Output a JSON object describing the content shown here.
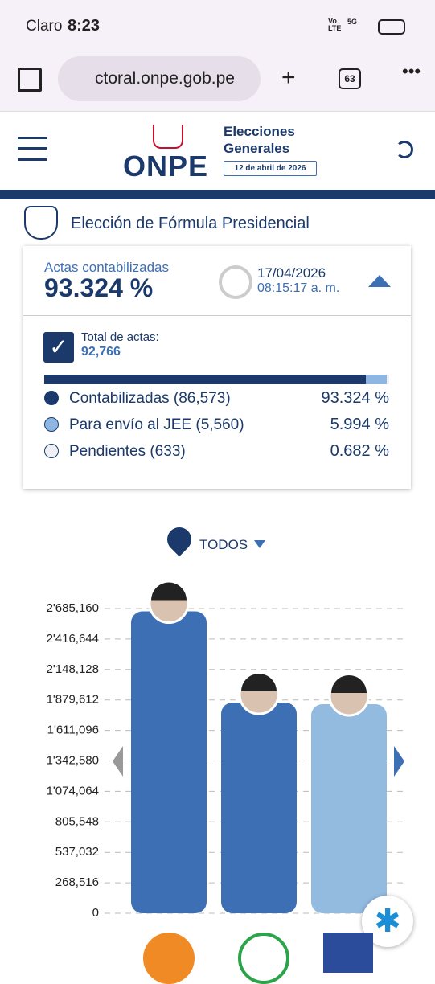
{
  "status_bar": {
    "carrier": "Claro",
    "time": "8:23",
    "volte": "Vo LTE",
    "network": "5G"
  },
  "browser": {
    "url": "ctoral.onpe.gob.pe",
    "tabs": "63"
  },
  "header": {
    "logo": "ONPE",
    "title_1": "Elecciones",
    "title_2": "Generales",
    "date": "12 de abril de 2026"
  },
  "section": {
    "title": "Elección de Fórmula Presidencial"
  },
  "card": {
    "label": "Actas contabilizadas",
    "percent": "93.324 %",
    "date": "17/04/2026",
    "time": "08:15:17 a. m.",
    "total_label": "Total de actas:",
    "total": "92,766",
    "items": [
      {
        "label": "Contabilizadas (86,573)",
        "percent": 93.324,
        "percent_label": "93.324 %",
        "color": "#1b3a6b"
      },
      {
        "label": "Para envío al JEE (5,560)",
        "percent": 5.994,
        "percent_label": "5.994 %",
        "color": "#8db7e2"
      },
      {
        "label": "Pendientes (633)",
        "percent": 0.682,
        "percent_label": "0.682 %",
        "color": "#eef0f3"
      }
    ]
  },
  "filter": {
    "label": "TODOS"
  },
  "chart_data": {
    "type": "bar",
    "categories": [
      null,
      null,
      null
    ],
    "values": [
      2660000,
      1856000,
      1842000
    ],
    "colors": [
      "#3d6fb4",
      "#3d6fb4",
      "#93bbe0"
    ],
    "ylim": [
      0,
      2685160
    ],
    "yticks": [
      0,
      {
        "value": 268516,
        "label": "268,516"
      },
      {
        "value": 537032,
        "label": "537,032"
      },
      {
        "value": 805548,
        "label": "805,548"
      },
      {
        "value": 1074064,
        "label": "1'074,064"
      },
      {
        "value": 1342580,
        "label": "1'342,580"
      },
      {
        "value": 1611096,
        "label": "1'611,096"
      },
      {
        "value": 1879612,
        "label": "1'879,612"
      },
      {
        "value": 2148128,
        "label": "2'148,128"
      },
      {
        "value": 2416644,
        "label": "2'416,644"
      },
      {
        "value": 2685160,
        "label": "2'685,160"
      }
    ],
    "grid": true
  }
}
